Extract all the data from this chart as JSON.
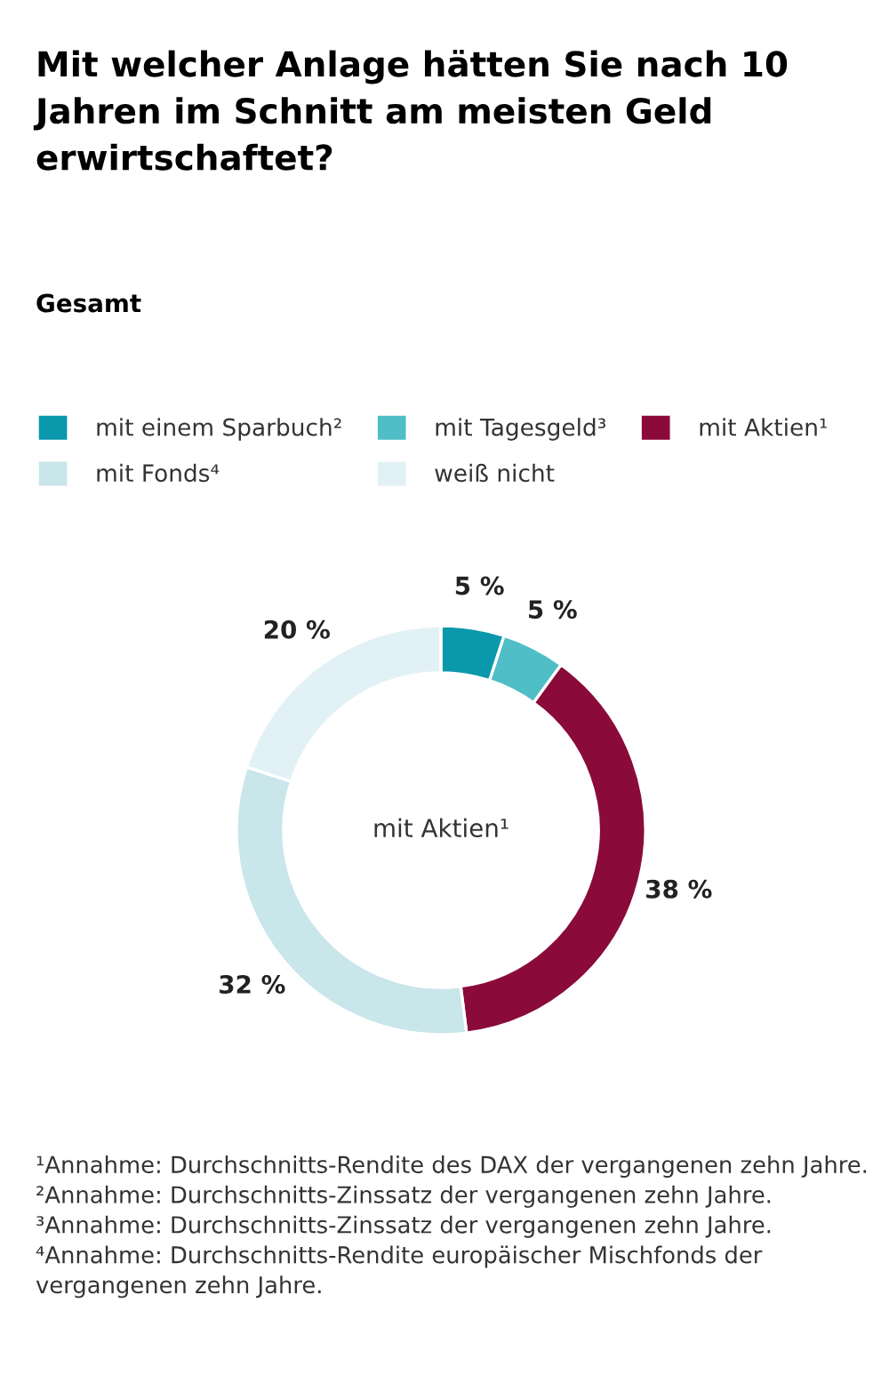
{
  "chart_data": {
    "type": "donut",
    "title": "Mit welcher Anlage hätten Sie nach 10 Jahren im Schnitt am meisten Geld erwirtschaftet?",
    "subtitle": "Gesamt",
    "categories": [
      "mit einem Sparbuch²",
      "mit Tagesgeld³",
      "mit Aktien¹",
      "mit Fonds⁴",
      "weiß nicht"
    ],
    "values": [
      5,
      5,
      38,
      32,
      20
    ],
    "value_labels": [
      "5 %",
      "5 %",
      "38 %",
      "32 %",
      "20 %"
    ],
    "colors": [
      "#0a98ac",
      "#4fbec6",
      "#8a0a3a",
      "#c9e6ea",
      "#e2f1f5"
    ],
    "legend": "top left",
    "annotations": [
      "mit Aktien¹",
      "¹Annahme: Durchschnitts-Rendite des DAX der vergangenen zehn Jahre.",
      "²Annahme: Durchschnitts-Zinssatz der vergangenen zehn Jahre.",
      "³Annahme: Durchschnitts-Zinssatz der vergangenen zehn Jahre.",
      "⁴Annahme: Durchschnitts-Rendite europäischer Mischfonds der vergangenen zehn Jahre."
    ]
  }
}
